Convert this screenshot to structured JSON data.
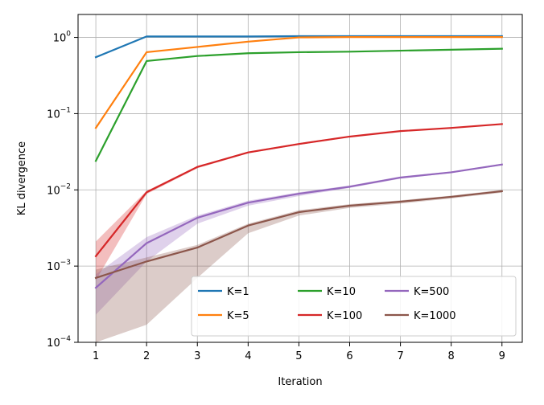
{
  "chart_data": {
    "type": "line",
    "xlabel": "Iteration",
    "ylabel": "KL divergence",
    "yscale": "log",
    "xlim": [
      0.65,
      9.4
    ],
    "ylim": [
      0.0001,
      2
    ],
    "grid": true,
    "legend_position": "lower-right",
    "legend_columns": 3,
    "x": [
      1,
      2,
      3,
      4,
      5,
      6,
      7,
      8,
      9
    ],
    "x_ticks": [
      1,
      2,
      3,
      4,
      5,
      6,
      7,
      8,
      9
    ],
    "y_ticks": [
      {
        "value": 0.0001,
        "base": "10",
        "exp": "−4"
      },
      {
        "value": 0.001,
        "base": "10",
        "exp": "−3"
      },
      {
        "value": 0.01,
        "base": "10",
        "exp": "−2"
      },
      {
        "value": 0.1,
        "base": "10",
        "exp": "−1"
      },
      {
        "value": 1,
        "base": "10",
        "exp": "0"
      }
    ],
    "series": [
      {
        "name": "K=1",
        "color": "#1f77b4",
        "values": [
          0.55,
          1.03,
          1.03,
          1.03,
          1.04,
          1.04,
          1.04,
          1.04,
          1.04
        ]
      },
      {
        "name": "K=5",
        "color": "#ff7f0e",
        "values": [
          0.065,
          0.64,
          0.75,
          0.88,
          1.0,
          1.01,
          1.01,
          1.01,
          1.01
        ]
      },
      {
        "name": "K=10",
        "color": "#2ca02c",
        "values": [
          0.024,
          0.49,
          0.57,
          0.62,
          0.64,
          0.65,
          0.67,
          0.69,
          0.71
        ]
      },
      {
        "name": "K=100",
        "color": "#d62728",
        "values": [
          0.00135,
          0.0093,
          0.02,
          0.031,
          0.04,
          0.05,
          0.059,
          0.065,
          0.073
        ],
        "band_lower": [
          0.00065,
          0.0088,
          0.0192,
          0.0302,
          0.039,
          0.049,
          0.058,
          0.064,
          0.072
        ],
        "band_upper": [
          0.0021,
          0.0097,
          0.0205,
          0.0318,
          0.041,
          0.051,
          0.06,
          0.066,
          0.074
        ]
      },
      {
        "name": "K=500",
        "color": "#9467bd",
        "values": [
          0.00052,
          0.002,
          0.0043,
          0.0068,
          0.0089,
          0.011,
          0.0145,
          0.017,
          0.0215
        ],
        "band_lower": [
          0.00023,
          0.00115,
          0.0036,
          0.0062,
          0.0083,
          0.0106,
          0.014,
          0.0166,
          0.021
        ],
        "band_upper": [
          0.00078,
          0.0024,
          0.0046,
          0.0072,
          0.0093,
          0.0114,
          0.015,
          0.0174,
          0.022
        ]
      },
      {
        "name": "K=1000",
        "color": "#8c564b",
        "values": [
          0.0007,
          0.00115,
          0.00175,
          0.0034,
          0.0051,
          0.0062,
          0.007,
          0.0081,
          0.0096
        ],
        "band_lower": [
          0.0001,
          0.00017,
          0.0007,
          0.0027,
          0.0046,
          0.0058,
          0.0066,
          0.0077,
          0.0092
        ],
        "band_upper": [
          0.0009,
          0.0013,
          0.0019,
          0.0036,
          0.0054,
          0.0065,
          0.0073,
          0.0084,
          0.01
        ]
      }
    ]
  }
}
